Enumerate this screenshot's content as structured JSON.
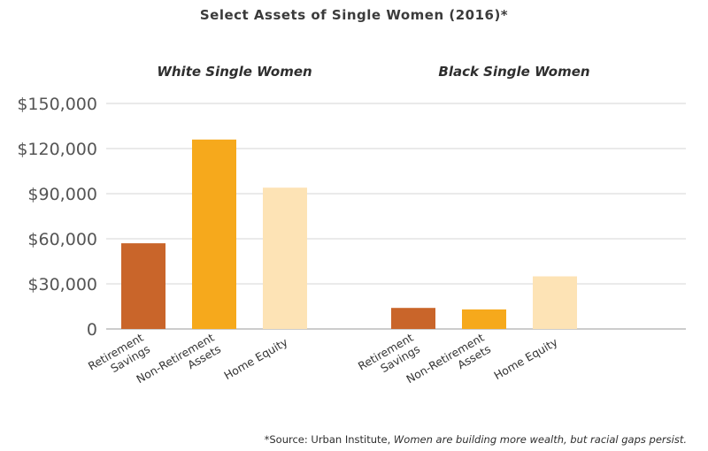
{
  "title": "Select Assets of Single Women (2016)*",
  "footnote": {
    "prefix": "*Source: Urban Institute, ",
    "italic": "Women are building more wealth, but racial gaps persist."
  },
  "chart_data": {
    "type": "bar",
    "ylim": [
      0,
      150000
    ],
    "yticks": [
      {
        "value": 0,
        "label": "0"
      },
      {
        "value": 30000,
        "label": "$30,000"
      },
      {
        "value": 60000,
        "label": "$60,000"
      },
      {
        "value": 90000,
        "label": "$90,000"
      },
      {
        "value": 120000,
        "label": "$120,000"
      },
      {
        "value": 150000,
        "label": "$150,000"
      }
    ],
    "grid": true,
    "legend": "none",
    "colors": [
      "#c9652a",
      "#f6a91c",
      "#fde3b5"
    ],
    "groups": [
      {
        "title": "White Single Women",
        "categories": [
          [
            "Retirement",
            "Savings"
          ],
          [
            "Non-Retirement",
            "Assets"
          ],
          [
            "Home Equity"
          ]
        ],
        "values": [
          57000,
          126000,
          94000
        ]
      },
      {
        "title": "Black Single Women",
        "categories": [
          [
            "Retirement",
            "Savings"
          ],
          [
            "Non-Retirement",
            "Assets"
          ],
          [
            "Home Equity"
          ]
        ],
        "values": [
          14000,
          13000,
          35000
        ]
      }
    ]
  }
}
